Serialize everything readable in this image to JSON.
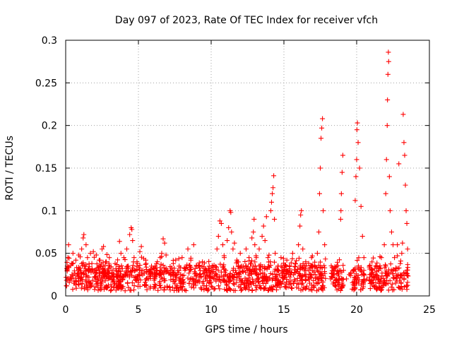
{
  "chart_data": {
    "type": "scatter",
    "title": "Day 097 of 2023, Rate Of TEC Index for receiver vfch",
    "xlabel": "GPS time / hours",
    "ylabel": "ROTI / TECUs",
    "xlim": [
      0,
      25
    ],
    "ylim": [
      0,
      0.3
    ],
    "xticks": [
      0,
      5,
      10,
      15,
      20,
      25
    ],
    "xtick_labels": [
      "0",
      "5",
      "10",
      "15",
      "20",
      "25"
    ],
    "yticks": [
      0,
      0.05,
      0.1,
      0.15,
      0.2,
      0.25,
      0.3
    ],
    "ytick_labels": [
      "0",
      "0.05",
      "0.1",
      "0.15",
      "0.2",
      "0.25",
      "0.3"
    ],
    "grid": true,
    "marker": "+",
    "color": "#ff0000",
    "series": [
      {
        "name": "ROTI",
        "points": [
          [
            0.05,
            0.012
          ],
          [
            0.1,
            0.03
          ],
          [
            0.15,
            0.045
          ],
          [
            0.2,
            0.06
          ],
          [
            0.3,
            0.02
          ],
          [
            0.4,
            0.038
          ],
          [
            0.5,
            0.05
          ],
          [
            0.6,
            0.015
          ],
          [
            0.7,
            0.042
          ],
          [
            0.8,
            0.025
          ],
          [
            0.9,
            0.048
          ],
          [
            1.0,
            0.018
          ],
          [
            1.1,
            0.055
          ],
          [
            1.2,
            0.068
          ],
          [
            1.25,
            0.072
          ],
          [
            1.3,
            0.035
          ],
          [
            1.4,
            0.06
          ],
          [
            1.5,
            0.045
          ],
          [
            1.6,
            0.022
          ],
          [
            1.7,
            0.05
          ],
          [
            1.8,
            0.038
          ],
          [
            1.9,
            0.052
          ],
          [
            2.0,
            0.03
          ],
          [
            2.1,
            0.048
          ],
          [
            2.2,
            0.02
          ],
          [
            2.3,
            0.042
          ],
          [
            2.4,
            0.035
          ],
          [
            2.5,
            0.055
          ],
          [
            2.6,
            0.058
          ],
          [
            2.7,
            0.025
          ],
          [
            2.8,
            0.04
          ],
          [
            2.9,
            0.03
          ],
          [
            3.0,
            0.045
          ],
          [
            3.2,
            0.02
          ],
          [
            3.4,
            0.038
          ],
          [
            3.6,
            0.028
          ],
          [
            3.7,
            0.064
          ],
          [
            3.8,
            0.05
          ],
          [
            3.9,
            0.032
          ],
          [
            4.0,
            0.045
          ],
          [
            4.1,
            0.025
          ],
          [
            4.2,
            0.055
          ],
          [
            4.3,
            0.035
          ],
          [
            4.4,
            0.072
          ],
          [
            4.5,
            0.08
          ],
          [
            4.55,
            0.078
          ],
          [
            4.6,
            0.065
          ],
          [
            4.7,
            0.045
          ],
          [
            4.8,
            0.03
          ],
          [
            4.9,
            0.04
          ],
          [
            5.0,
            0.025
          ],
          [
            5.1,
            0.052
          ],
          [
            5.2,
            0.058
          ],
          [
            5.3,
            0.03
          ],
          [
            5.5,
            0.042
          ],
          [
            5.7,
            0.02
          ],
          [
            5.9,
            0.035
          ],
          [
            6.1,
            0.028
          ],
          [
            6.3,
            0.04
          ],
          [
            6.5,
            0.045
          ],
          [
            6.6,
            0.05
          ],
          [
            6.7,
            0.067
          ],
          [
            6.8,
            0.062
          ],
          [
            6.9,
            0.048
          ],
          [
            7.0,
            0.03
          ],
          [
            7.2,
            0.025
          ],
          [
            7.4,
            0.038
          ],
          [
            7.6,
            0.022
          ],
          [
            7.8,
            0.035
          ],
          [
            8.0,
            0.045
          ],
          [
            8.2,
            0.03
          ],
          [
            8.4,
            0.055
          ],
          [
            8.6,
            0.042
          ],
          [
            8.8,
            0.06
          ],
          [
            9.0,
            0.035
          ],
          [
            9.2,
            0.025
          ],
          [
            9.4,
            0.04
          ],
          [
            9.6,
            0.02
          ],
          [
            9.8,
            0.032
          ],
          [
            10.0,
            0.028
          ],
          [
            10.2,
            0.036
          ],
          [
            10.4,
            0.055
          ],
          [
            10.5,
            0.07
          ],
          [
            10.6,
            0.088
          ],
          [
            10.7,
            0.085
          ],
          [
            10.8,
            0.06
          ],
          [
            10.9,
            0.045
          ],
          [
            11.0,
            0.03
          ],
          [
            11.1,
            0.065
          ],
          [
            11.2,
            0.08
          ],
          [
            11.3,
            0.1
          ],
          [
            11.35,
            0.098
          ],
          [
            11.4,
            0.075
          ],
          [
            11.5,
            0.055
          ],
          [
            11.6,
            0.062
          ],
          [
            11.8,
            0.04
          ],
          [
            12.0,
            0.05
          ],
          [
            12.2,
            0.035
          ],
          [
            12.4,
            0.055
          ],
          [
            12.6,
            0.045
          ],
          [
            12.8,
            0.068
          ],
          [
            12.9,
            0.075
          ],
          [
            12.95,
            0.09
          ],
          [
            13.0,
            0.06
          ],
          [
            13.1,
            0.045
          ],
          [
            13.3,
            0.055
          ],
          [
            13.5,
            0.07
          ],
          [
            13.6,
            0.082
          ],
          [
            13.7,
            0.065
          ],
          [
            13.8,
            0.093
          ],
          [
            13.9,
            0.045
          ],
          [
            14.1,
            0.1
          ],
          [
            14.15,
            0.11
          ],
          [
            14.2,
            0.12
          ],
          [
            14.25,
            0.127
          ],
          [
            14.3,
            0.141
          ],
          [
            14.35,
            0.09
          ],
          [
            14.4,
            0.05
          ],
          [
            14.6,
            0.035
          ],
          [
            14.8,
            0.045
          ],
          [
            15.0,
            0.03
          ],
          [
            15.2,
            0.042
          ],
          [
            15.4,
            0.028
          ],
          [
            15.6,
            0.05
          ],
          [
            15.8,
            0.038
          ],
          [
            16.0,
            0.06
          ],
          [
            16.1,
            0.082
          ],
          [
            16.15,
            0.095
          ],
          [
            16.2,
            0.1
          ],
          [
            16.3,
            0.055
          ],
          [
            16.5,
            0.04
          ],
          [
            16.7,
            0.03
          ],
          [
            16.9,
            0.045
          ],
          [
            17.1,
            0.035
          ],
          [
            17.3,
            0.05
          ],
          [
            17.4,
            0.075
          ],
          [
            17.45,
            0.12
          ],
          [
            17.5,
            0.15
          ],
          [
            17.55,
            0.185
          ],
          [
            17.6,
            0.197
          ],
          [
            17.65,
            0.208
          ],
          [
            17.7,
            0.1
          ],
          [
            17.8,
            0.06
          ],
          [
            18.2,
            0.02
          ],
          [
            18.4,
            0.025
          ],
          [
            18.6,
            0.018
          ],
          [
            18.8,
            0.03
          ],
          [
            18.9,
            0.09
          ],
          [
            18.92,
            0.1
          ],
          [
            18.95,
            0.12
          ],
          [
            19.0,
            0.145
          ],
          [
            19.05,
            0.165
          ],
          [
            19.1,
            0.03
          ],
          [
            19.3,
            0.02
          ],
          [
            19.5,
            0.025
          ],
          [
            19.8,
            0.03
          ],
          [
            19.9,
            0.112
          ],
          [
            19.95,
            0.14
          ],
          [
            20.0,
            0.16
          ],
          [
            20.02,
            0.195
          ],
          [
            20.05,
            0.203
          ],
          [
            20.1,
            0.18
          ],
          [
            20.2,
            0.15
          ],
          [
            20.3,
            0.105
          ],
          [
            20.4,
            0.07
          ],
          [
            20.5,
            0.045
          ],
          [
            20.7,
            0.02
          ],
          [
            20.9,
            0.025
          ],
          [
            21.1,
            0.03
          ],
          [
            21.3,
            0.035
          ],
          [
            21.5,
            0.03
          ],
          [
            21.7,
            0.045
          ],
          [
            21.9,
            0.06
          ],
          [
            22.0,
            0.12
          ],
          [
            22.05,
            0.16
          ],
          [
            22.1,
            0.2
          ],
          [
            22.12,
            0.23
          ],
          [
            22.15,
            0.26
          ],
          [
            22.18,
            0.286
          ],
          [
            22.2,
            0.275
          ],
          [
            22.25,
            0.14
          ],
          [
            22.3,
            0.1
          ],
          [
            22.4,
            0.075
          ],
          [
            22.5,
            0.06
          ],
          [
            22.6,
            0.045
          ],
          [
            22.8,
            0.06
          ],
          [
            22.9,
            0.155
          ],
          [
            23.0,
            0.038
          ],
          [
            23.1,
            0.05
          ],
          [
            23.15,
            0.062
          ],
          [
            23.2,
            0.213
          ],
          [
            23.25,
            0.18
          ],
          [
            23.3,
            0.165
          ],
          [
            23.35,
            0.13
          ],
          [
            23.4,
            0.1
          ],
          [
            23.45,
            0.085
          ],
          [
            23.5,
            0.055
          ]
        ]
      }
    ]
  }
}
